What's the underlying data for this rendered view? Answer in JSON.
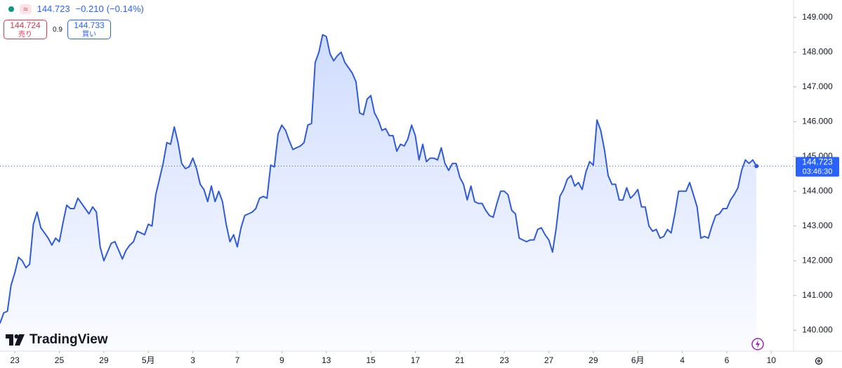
{
  "header": {
    "price": "144.723",
    "change": "−0.210",
    "change_pct": "(−0.14%)",
    "sell_price": "144.724",
    "sell_label": "売り",
    "spread": "0.9",
    "buy_price": "144.733",
    "buy_label": "買い"
  },
  "watermark": "TradingView",
  "chart_data": {
    "type": "area",
    "color": "#2f5bd8",
    "grid": false,
    "last_price_label": "144.723",
    "countdown": "03:46:30",
    "values": [
      140.2,
      140.5,
      140.55,
      141.3,
      141.65,
      142.1,
      142.0,
      141.8,
      141.9,
      143.05,
      143.4,
      142.95,
      142.8,
      142.65,
      142.45,
      142.65,
      142.55,
      143.1,
      143.6,
      143.5,
      143.5,
      143.8,
      143.65,
      143.5,
      143.35,
      143.55,
      143.4,
      142.4,
      142.0,
      142.25,
      142.5,
      142.55,
      142.3,
      142.05,
      142.3,
      142.45,
      142.55,
      142.85,
      142.8,
      142.75,
      143.05,
      143.0,
      143.9,
      144.35,
      144.8,
      145.4,
      145.35,
      145.85,
      145.4,
      144.8,
      144.65,
      144.7,
      144.95,
      144.65,
      144.2,
      144.05,
      143.7,
      144.15,
      143.7,
      144.0,
      143.7,
      143.05,
      142.55,
      142.75,
      142.4,
      142.95,
      143.3,
      143.35,
      143.4,
      143.5,
      143.8,
      143.85,
      143.8,
      144.75,
      144.7,
      145.65,
      145.9,
      145.75,
      145.45,
      145.2,
      145.25,
      145.3,
      145.4,
      145.9,
      145.95,
      147.7,
      148.0,
      148.5,
      148.45,
      147.95,
      147.75,
      147.9,
      148.0,
      147.7,
      147.55,
      147.4,
      147.15,
      146.25,
      146.2,
      146.65,
      146.75,
      146.25,
      146.05,
      145.75,
      145.8,
      145.6,
      145.6,
      145.15,
      145.35,
      145.3,
      145.5,
      145.9,
      145.6,
      144.9,
      145.35,
      144.85,
      144.95,
      144.95,
      144.9,
      145.25,
      144.8,
      144.6,
      144.8,
      144.8,
      144.4,
      144.2,
      143.75,
      144.15,
      143.7,
      143.65,
      143.65,
      143.45,
      143.3,
      143.25,
      143.65,
      144.0,
      144.0,
      143.9,
      143.45,
      143.35,
      142.65,
      142.6,
      142.55,
      142.6,
      142.6,
      142.9,
      142.95,
      142.75,
      142.6,
      142.25,
      142.95,
      143.85,
      144.05,
      144.35,
      144.45,
      144.15,
      144.25,
      144.05,
      144.55,
      144.85,
      144.75,
      146.05,
      145.75,
      145.2,
      144.45,
      144.2,
      144.2,
      143.75,
      143.75,
      144.1,
      143.8,
      143.9,
      144.05,
      143.55,
      143.55,
      143.0,
      142.85,
      142.9,
      142.65,
      142.7,
      142.9,
      142.8,
      143.35,
      144.0,
      144.0,
      144.0,
      144.25,
      143.9,
      143.55,
      142.65,
      142.7,
      142.65,
      143.0,
      143.3,
      143.35,
      143.5,
      143.5,
      143.75,
      143.9,
      144.1,
      144.6,
      144.9,
      144.8,
      144.9,
      144.723
    ],
    "xlim": [
      0,
      214
    ],
    "xticks": [
      {
        "value": 4,
        "label": "23"
      },
      {
        "value": 16,
        "label": "25"
      },
      {
        "value": 28,
        "label": "29"
      },
      {
        "value": 40,
        "label": "5月"
      },
      {
        "value": 52,
        "label": "3"
      },
      {
        "value": 64,
        "label": "7"
      },
      {
        "value": 76,
        "label": "9"
      },
      {
        "value": 88,
        "label": "13"
      },
      {
        "value": 100,
        "label": "15"
      },
      {
        "value": 112,
        "label": "17"
      },
      {
        "value": 124,
        "label": "21"
      },
      {
        "value": 136,
        "label": "23"
      },
      {
        "value": 148,
        "label": "27"
      },
      {
        "value": 160,
        "label": "29"
      },
      {
        "value": 172,
        "label": "6月"
      },
      {
        "value": 184,
        "label": "4"
      },
      {
        "value": 196,
        "label": "6"
      },
      {
        "value": 208,
        "label": "10"
      }
    ],
    "ylim": [
      139.4,
      149.5
    ],
    "yticks": [
      {
        "value": 140,
        "label": "140.000"
      },
      {
        "value": 141,
        "label": "141.000"
      },
      {
        "value": 142,
        "label": "142.000"
      },
      {
        "value": 143,
        "label": "143.000"
      },
      {
        "value": 144,
        "label": "144.000"
      },
      {
        "value": 145,
        "label": "145.000"
      },
      {
        "value": 146,
        "label": "146.000"
      },
      {
        "value": 147,
        "label": "147.000"
      },
      {
        "value": 148,
        "label": "148.000"
      },
      {
        "value": 149,
        "label": "149.000"
      }
    ]
  }
}
